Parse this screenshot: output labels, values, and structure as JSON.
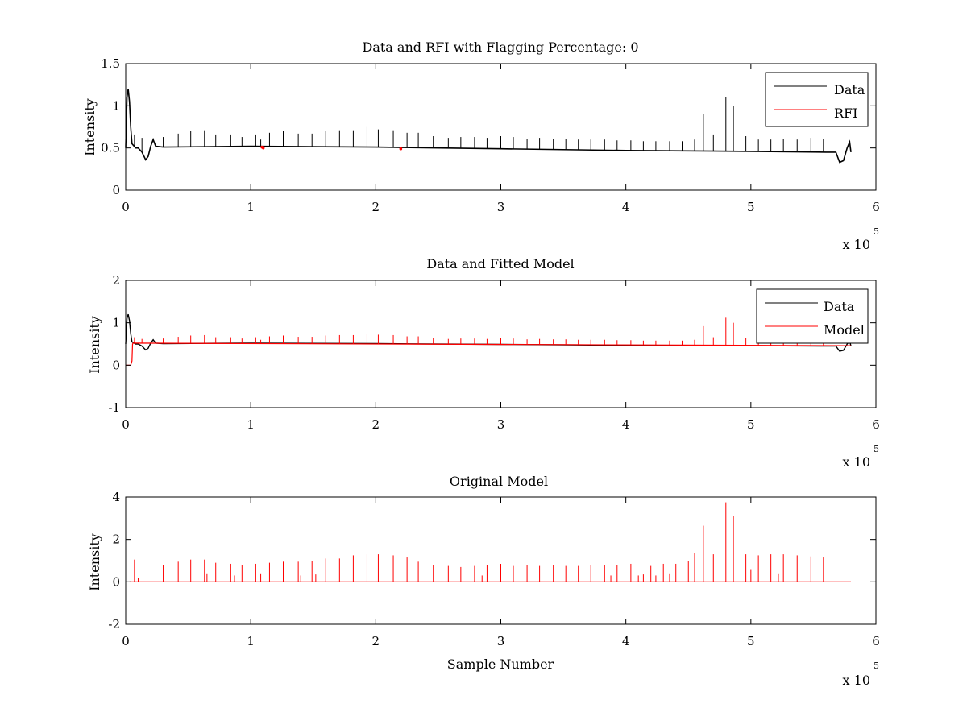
{
  "colors": {
    "data": "#000000",
    "rfi": "#ff0000",
    "model": "#ff0000",
    "axes": "#000000",
    "background": "#ffffff"
  },
  "chart_data": [
    {
      "type": "line",
      "title": "Data and RFI with Flagging Percentage: 0",
      "xlabel": "",
      "ylabel": "Intensity",
      "xlim": [
        0,
        6
      ],
      "ylim": [
        0,
        1.5
      ],
      "x_exponent_label": "x 10",
      "x_exponent_power": "5",
      "xticks": [
        "0",
        "1",
        "2",
        "3",
        "4",
        "5",
        "6"
      ],
      "yticks": [
        "0",
        "0.5",
        "1",
        "1.5"
      ],
      "ytick_values": [
        0,
        0.5,
        1,
        1.5
      ],
      "legend": {
        "placement": "top-right",
        "entries": [
          "Data",
          "RFI"
        ]
      },
      "baseline": [
        [
          0.0,
          0.5
        ],
        [
          0.01,
          1.1
        ],
        [
          0.02,
          1.2
        ],
        [
          0.03,
          1.05
        ],
        [
          0.04,
          0.75
        ],
        [
          0.05,
          0.55
        ],
        [
          0.08,
          0.5
        ],
        [
          0.1,
          0.5
        ],
        [
          0.13,
          0.45
        ],
        [
          0.16,
          0.36
        ],
        [
          0.18,
          0.4
        ],
        [
          0.2,
          0.52
        ],
        [
          0.22,
          0.6
        ],
        [
          0.24,
          0.52
        ],
        [
          0.3,
          0.51
        ],
        [
          1.0,
          0.52
        ],
        [
          2.0,
          0.51
        ],
        [
          3.0,
          0.49
        ],
        [
          4.0,
          0.47
        ],
        [
          5.0,
          0.46
        ],
        [
          5.6,
          0.45
        ],
        [
          5.68,
          0.45
        ],
        [
          5.71,
          0.33
        ],
        [
          5.74,
          0.35
        ],
        [
          5.77,
          0.5
        ],
        [
          5.79,
          0.57
        ],
        [
          5.8,
          0.45
        ]
      ],
      "spikes": [
        [
          0.07,
          0.66
        ],
        [
          0.13,
          0.62
        ],
        [
          0.3,
          0.63
        ],
        [
          0.42,
          0.67
        ],
        [
          0.52,
          0.7
        ],
        [
          0.63,
          0.71
        ],
        [
          0.72,
          0.66
        ],
        [
          0.84,
          0.66
        ],
        [
          0.93,
          0.63
        ],
        [
          1.04,
          0.66
        ],
        [
          1.08,
          0.6
        ],
        [
          1.15,
          0.68
        ],
        [
          1.26,
          0.7
        ],
        [
          1.38,
          0.67
        ],
        [
          1.49,
          0.67
        ],
        [
          1.6,
          0.7
        ],
        [
          1.71,
          0.71
        ],
        [
          1.82,
          0.71
        ],
        [
          1.93,
          0.75
        ],
        [
          2.02,
          0.72
        ],
        [
          2.14,
          0.71
        ],
        [
          2.25,
          0.68
        ],
        [
          2.34,
          0.68
        ],
        [
          2.46,
          0.64
        ],
        [
          2.58,
          0.62
        ],
        [
          2.68,
          0.63
        ],
        [
          2.79,
          0.63
        ],
        [
          2.89,
          0.62
        ],
        [
          3.0,
          0.64
        ],
        [
          3.1,
          0.63
        ],
        [
          3.21,
          0.61
        ],
        [
          3.31,
          0.62
        ],
        [
          3.42,
          0.61
        ],
        [
          3.52,
          0.61
        ],
        [
          3.62,
          0.6
        ],
        [
          3.72,
          0.6
        ],
        [
          3.83,
          0.6
        ],
        [
          3.93,
          0.59
        ],
        [
          4.04,
          0.59
        ],
        [
          4.14,
          0.58
        ],
        [
          4.24,
          0.58
        ],
        [
          4.35,
          0.58
        ],
        [
          4.45,
          0.58
        ],
        [
          4.55,
          0.6
        ],
        [
          4.62,
          0.9
        ],
        [
          4.7,
          0.66
        ],
        [
          4.8,
          1.1
        ],
        [
          4.86,
          1.0
        ],
        [
          4.96,
          0.64
        ],
        [
          5.06,
          0.6
        ],
        [
          5.16,
          0.6
        ],
        [
          5.26,
          0.61
        ],
        [
          5.37,
          0.6
        ],
        [
          5.48,
          0.62
        ],
        [
          5.58,
          0.61
        ]
      ],
      "rfi_points": [
        [
          1.09,
          0.51
        ],
        [
          1.1,
          0.5
        ],
        [
          2.2,
          0.49
        ]
      ]
    },
    {
      "type": "line",
      "title": "Data and Fitted Model",
      "xlabel": "",
      "ylabel": "Intensity",
      "xlim": [
        0,
        6
      ],
      "ylim": [
        -1,
        2
      ],
      "x_exponent_label": "x 10",
      "x_exponent_power": "5",
      "xticks": [
        "0",
        "1",
        "2",
        "3",
        "4",
        "5",
        "6"
      ],
      "yticks": [
        "-1",
        "0",
        "1",
        "2"
      ],
      "ytick_values": [
        -1,
        0,
        1,
        2
      ],
      "legend": {
        "placement": "top-right",
        "entries": [
          "Data",
          "Model"
        ]
      },
      "data_line": [
        [
          0.0,
          0.5
        ],
        [
          0.01,
          1.1
        ],
        [
          0.02,
          1.2
        ],
        [
          0.03,
          1.05
        ],
        [
          0.04,
          0.75
        ],
        [
          0.05,
          0.55
        ],
        [
          0.08,
          0.5
        ],
        [
          0.1,
          0.5
        ],
        [
          0.13,
          0.45
        ],
        [
          0.16,
          0.36
        ],
        [
          0.18,
          0.4
        ],
        [
          0.2,
          0.52
        ],
        [
          0.22,
          0.6
        ],
        [
          0.24,
          0.52
        ],
        [
          0.3,
          0.51
        ],
        [
          1.0,
          0.52
        ],
        [
          2.0,
          0.51
        ],
        [
          3.0,
          0.49
        ],
        [
          4.0,
          0.47
        ],
        [
          5.0,
          0.46
        ],
        [
          5.6,
          0.45
        ],
        [
          5.68,
          0.45
        ],
        [
          5.71,
          0.33
        ],
        [
          5.74,
          0.35
        ],
        [
          5.77,
          0.5
        ],
        [
          5.79,
          0.57
        ],
        [
          5.8,
          0.45
        ]
      ],
      "model_line": [
        [
          0.0,
          0.0
        ],
        [
          0.04,
          0.0
        ],
        [
          0.05,
          0.1
        ],
        [
          0.055,
          0.5
        ],
        [
          0.06,
          0.52
        ],
        [
          5.8,
          0.46
        ]
      ],
      "model_spikes": [
        [
          0.07,
          0.66
        ],
        [
          0.13,
          0.62
        ],
        [
          0.3,
          0.63
        ],
        [
          0.42,
          0.67
        ],
        [
          0.52,
          0.7
        ],
        [
          0.63,
          0.71
        ],
        [
          0.72,
          0.66
        ],
        [
          0.84,
          0.66
        ],
        [
          0.93,
          0.63
        ],
        [
          1.04,
          0.66
        ],
        [
          1.08,
          0.6
        ],
        [
          1.15,
          0.68
        ],
        [
          1.26,
          0.7
        ],
        [
          1.38,
          0.67
        ],
        [
          1.49,
          0.67
        ],
        [
          1.6,
          0.7
        ],
        [
          1.71,
          0.71
        ],
        [
          1.82,
          0.71
        ],
        [
          1.93,
          0.75
        ],
        [
          2.02,
          0.72
        ],
        [
          2.14,
          0.71
        ],
        [
          2.25,
          0.68
        ],
        [
          2.34,
          0.68
        ],
        [
          2.46,
          0.64
        ],
        [
          2.58,
          0.62
        ],
        [
          2.68,
          0.63
        ],
        [
          2.79,
          0.63
        ],
        [
          2.89,
          0.62
        ],
        [
          3.0,
          0.64
        ],
        [
          3.1,
          0.63
        ],
        [
          3.21,
          0.61
        ],
        [
          3.31,
          0.62
        ],
        [
          3.42,
          0.61
        ],
        [
          3.52,
          0.61
        ],
        [
          3.62,
          0.6
        ],
        [
          3.72,
          0.6
        ],
        [
          3.83,
          0.6
        ],
        [
          3.93,
          0.59
        ],
        [
          4.04,
          0.59
        ],
        [
          4.14,
          0.58
        ],
        [
          4.24,
          0.58
        ],
        [
          4.35,
          0.58
        ],
        [
          4.45,
          0.58
        ],
        [
          4.55,
          0.6
        ],
        [
          4.62,
          0.92
        ],
        [
          4.7,
          0.66
        ],
        [
          4.8,
          1.12
        ],
        [
          4.86,
          1.0
        ],
        [
          4.96,
          0.64
        ],
        [
          5.06,
          0.6
        ],
        [
          5.16,
          0.6
        ],
        [
          5.26,
          0.61
        ],
        [
          5.37,
          0.6
        ],
        [
          5.48,
          0.62
        ],
        [
          5.58,
          0.61
        ]
      ]
    },
    {
      "type": "line",
      "title": "Original Model",
      "xlabel": "Sample Number",
      "ylabel": "Intensity",
      "xlim": [
        0,
        6
      ],
      "ylim": [
        -2,
        4
      ],
      "x_exponent_label": "x 10",
      "x_exponent_power": "5",
      "xticks": [
        "0",
        "1",
        "2",
        "3",
        "4",
        "5",
        "6"
      ],
      "yticks": [
        "-2",
        "0",
        "2",
        "4"
      ],
      "ytick_values": [
        -2,
        0,
        2,
        4
      ],
      "baseline": [
        [
          0.03,
          0.0
        ],
        [
          5.8,
          0.0
        ]
      ],
      "spikes": [
        [
          0.07,
          1.05
        ],
        [
          0.1,
          0.2
        ],
        [
          0.3,
          0.8
        ],
        [
          0.42,
          0.95
        ],
        [
          0.52,
          1.05
        ],
        [
          0.63,
          1.05
        ],
        [
          0.65,
          0.4
        ],
        [
          0.72,
          0.9
        ],
        [
          0.84,
          0.85
        ],
        [
          0.87,
          0.3
        ],
        [
          0.93,
          0.8
        ],
        [
          1.04,
          0.85
        ],
        [
          1.08,
          0.4
        ],
        [
          1.15,
          0.9
        ],
        [
          1.26,
          0.95
        ],
        [
          1.38,
          0.95
        ],
        [
          1.4,
          0.3
        ],
        [
          1.49,
          1.0
        ],
        [
          1.52,
          0.35
        ],
        [
          1.6,
          1.1
        ],
        [
          1.71,
          1.1
        ],
        [
          1.82,
          1.25
        ],
        [
          1.93,
          1.3
        ],
        [
          2.02,
          1.3
        ],
        [
          2.14,
          1.25
        ],
        [
          2.25,
          1.15
        ],
        [
          2.34,
          0.95
        ],
        [
          2.46,
          0.8
        ],
        [
          2.58,
          0.75
        ],
        [
          2.68,
          0.7
        ],
        [
          2.79,
          0.75
        ],
        [
          2.85,
          0.3
        ],
        [
          2.89,
          0.8
        ],
        [
          3.0,
          0.85
        ],
        [
          3.1,
          0.75
        ],
        [
          3.21,
          0.8
        ],
        [
          3.31,
          0.75
        ],
        [
          3.42,
          0.8
        ],
        [
          3.52,
          0.75
        ],
        [
          3.62,
          0.75
        ],
        [
          3.72,
          0.8
        ],
        [
          3.83,
          0.8
        ],
        [
          3.88,
          0.3
        ],
        [
          3.93,
          0.8
        ],
        [
          4.04,
          0.85
        ],
        [
          4.1,
          0.3
        ],
        [
          4.14,
          0.35
        ],
        [
          4.2,
          0.75
        ],
        [
          4.24,
          0.3
        ],
        [
          4.3,
          0.85
        ],
        [
          4.35,
          0.4
        ],
        [
          4.4,
          0.85
        ],
        [
          4.5,
          1.0
        ],
        [
          4.55,
          1.35
        ],
        [
          4.62,
          2.65
        ],
        [
          4.7,
          1.3
        ],
        [
          4.8,
          3.75
        ],
        [
          4.86,
          3.1
        ],
        [
          4.96,
          1.3
        ],
        [
          5.0,
          0.6
        ],
        [
          5.06,
          1.25
        ],
        [
          5.16,
          1.3
        ],
        [
          5.22,
          0.4
        ],
        [
          5.26,
          1.3
        ],
        [
          5.37,
          1.25
        ],
        [
          5.48,
          1.2
        ],
        [
          5.58,
          1.15
        ]
      ]
    }
  ]
}
